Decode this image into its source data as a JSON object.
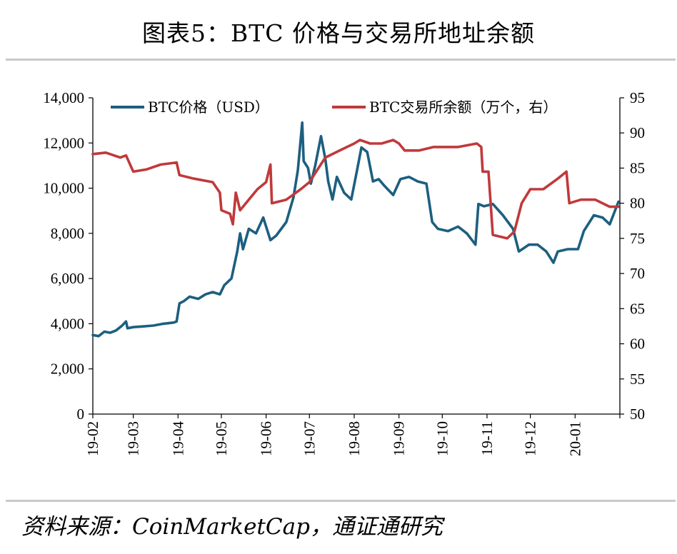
{
  "title": "图表5：BTC 价格与交易所地址余额",
  "source": "资料来源：CoinMarketCap，通证通研究",
  "colors": {
    "price": "#1d5f7f",
    "balance": "#c0393b",
    "axis": "#000000",
    "rule": "#c9c9c9"
  },
  "chart_data": {
    "type": "line",
    "title": "图表5：BTC 价格与交易所地址余额",
    "xlabel": "",
    "ylabel": "",
    "x_ticks": [
      "19-02",
      "19-03",
      "19-04",
      "19-05",
      "19-06",
      "19-07",
      "19-08",
      "19-09",
      "19-10",
      "19-11",
      "19-12",
      "20-01"
    ],
    "y_left": {
      "min": 0,
      "max": 14000,
      "ticks": [
        "0",
        "2,000",
        "4,000",
        "6,000",
        "8,000",
        "10,000",
        "12,000",
        "14,000"
      ]
    },
    "y_right": {
      "min": 50,
      "max": 95,
      "ticks": [
        "50",
        "55",
        "60",
        "65",
        "70",
        "75",
        "80",
        "85",
        "90",
        "95"
      ]
    },
    "legend_position": "top",
    "grid": false,
    "series": [
      {
        "name": "BTC价格（USD）",
        "axis": "left",
        "points": [
          [
            "2019-02-01",
            3500
          ],
          [
            "2019-02-05",
            3450
          ],
          [
            "2019-02-09",
            3650
          ],
          [
            "2019-02-13",
            3600
          ],
          [
            "2019-02-17",
            3700
          ],
          [
            "2019-02-21",
            3900
          ],
          [
            "2019-02-24",
            4100
          ],
          [
            "2019-02-25",
            3800
          ],
          [
            "2019-03-01",
            3850
          ],
          [
            "2019-03-08",
            3880
          ],
          [
            "2019-03-15",
            3920
          ],
          [
            "2019-03-22",
            4000
          ],
          [
            "2019-03-29",
            4050
          ],
          [
            "2019-03-31",
            4100
          ],
          [
            "2019-04-02",
            4900
          ],
          [
            "2019-04-05",
            5000
          ],
          [
            "2019-04-09",
            5200
          ],
          [
            "2019-04-15",
            5100
          ],
          [
            "2019-04-20",
            5300
          ],
          [
            "2019-04-25",
            5400
          ],
          [
            "2019-04-30",
            5300
          ],
          [
            "2019-05-03",
            5700
          ],
          [
            "2019-05-08",
            6000
          ],
          [
            "2019-05-12",
            7200
          ],
          [
            "2019-05-14",
            8000
          ],
          [
            "2019-05-16",
            7300
          ],
          [
            "2019-05-20",
            8200
          ],
          [
            "2019-05-25",
            8000
          ],
          [
            "2019-05-30",
            8700
          ],
          [
            "2019-06-04",
            7700
          ],
          [
            "2019-06-08",
            7900
          ],
          [
            "2019-06-15",
            8500
          ],
          [
            "2019-06-20",
            9600
          ],
          [
            "2019-06-23",
            10800
          ],
          [
            "2019-06-26",
            12900
          ],
          [
            "2019-06-27",
            11200
          ],
          [
            "2019-06-30",
            10900
          ],
          [
            "2019-07-02",
            10200
          ],
          [
            "2019-07-05",
            11000
          ],
          [
            "2019-07-09",
            12300
          ],
          [
            "2019-07-12",
            11300
          ],
          [
            "2019-07-14",
            10300
          ],
          [
            "2019-07-17",
            9500
          ],
          [
            "2019-07-20",
            10500
          ],
          [
            "2019-07-25",
            9800
          ],
          [
            "2019-07-30",
            9500
          ],
          [
            "2019-08-03",
            10800
          ],
          [
            "2019-08-06",
            11800
          ],
          [
            "2019-08-10",
            11600
          ],
          [
            "2019-08-14",
            10300
          ],
          [
            "2019-08-18",
            10400
          ],
          [
            "2019-08-22",
            10100
          ],
          [
            "2019-08-28",
            9700
          ],
          [
            "2019-09-02",
            10400
          ],
          [
            "2019-09-08",
            10500
          ],
          [
            "2019-09-14",
            10300
          ],
          [
            "2019-09-20",
            10200
          ],
          [
            "2019-09-24",
            8500
          ],
          [
            "2019-09-28",
            8200
          ],
          [
            "2019-10-05",
            8100
          ],
          [
            "2019-10-12",
            8300
          ],
          [
            "2019-10-18",
            8000
          ],
          [
            "2019-10-24",
            7500
          ],
          [
            "2019-10-26",
            9300
          ],
          [
            "2019-10-30",
            9200
          ],
          [
            "2019-11-05",
            9300
          ],
          [
            "2019-11-12",
            8800
          ],
          [
            "2019-11-19",
            8200
          ],
          [
            "2019-11-23",
            7200
          ],
          [
            "2019-11-30",
            7500
          ],
          [
            "2019-12-06",
            7500
          ],
          [
            "2019-12-12",
            7200
          ],
          [
            "2019-12-17",
            6700
          ],
          [
            "2019-12-20",
            7200
          ],
          [
            "2019-12-27",
            7300
          ],
          [
            "2020-01-03",
            7300
          ],
          [
            "2020-01-07",
            8100
          ],
          [
            "2020-01-14",
            8800
          ],
          [
            "2020-01-20",
            8700
          ],
          [
            "2020-01-25",
            8400
          ],
          [
            "2020-01-31",
            9400
          ]
        ]
      },
      {
        "name": "BTC交易所余额（万个，右）",
        "axis": "right",
        "points": [
          [
            "2019-02-01",
            87.0
          ],
          [
            "2019-02-10",
            87.2
          ],
          [
            "2019-02-20",
            86.5
          ],
          [
            "2019-02-24",
            86.8
          ],
          [
            "2019-03-01",
            84.5
          ],
          [
            "2019-03-10",
            84.8
          ],
          [
            "2019-03-20",
            85.5
          ],
          [
            "2019-03-31",
            85.8
          ],
          [
            "2019-04-02",
            84.0
          ],
          [
            "2019-04-12",
            83.5
          ],
          [
            "2019-04-25",
            83.0
          ],
          [
            "2019-04-30",
            81.5
          ],
          [
            "2019-05-01",
            79.0
          ],
          [
            "2019-05-07",
            78.5
          ],
          [
            "2019-05-09",
            77.0
          ],
          [
            "2019-05-11",
            81.5
          ],
          [
            "2019-05-14",
            79.0
          ],
          [
            "2019-05-20",
            80.5
          ],
          [
            "2019-05-26",
            82.0
          ],
          [
            "2019-06-01",
            83.0
          ],
          [
            "2019-06-04",
            85.5
          ],
          [
            "2019-06-05",
            80.0
          ],
          [
            "2019-06-15",
            80.5
          ],
          [
            "2019-06-25",
            82.0
          ],
          [
            "2019-07-01",
            83.0
          ],
          [
            "2019-07-12",
            86.5
          ],
          [
            "2019-07-22",
            87.5
          ],
          [
            "2019-08-01",
            88.5
          ],
          [
            "2019-08-05",
            89.0
          ],
          [
            "2019-08-12",
            88.5
          ],
          [
            "2019-08-20",
            88.5
          ],
          [
            "2019-08-28",
            89.0
          ],
          [
            "2019-09-01",
            88.5
          ],
          [
            "2019-09-05",
            87.5
          ],
          [
            "2019-09-15",
            87.5
          ],
          [
            "2019-09-25",
            88.0
          ],
          [
            "2019-10-01",
            88.0
          ],
          [
            "2019-10-12",
            88.0
          ],
          [
            "2019-10-25",
            88.5
          ],
          [
            "2019-10-28",
            88.0
          ],
          [
            "2019-10-29",
            84.5
          ],
          [
            "2019-11-02",
            84.5
          ],
          [
            "2019-11-05",
            75.5
          ],
          [
            "2019-11-15",
            75.0
          ],
          [
            "2019-11-20",
            76.0
          ],
          [
            "2019-11-25",
            80.0
          ],
          [
            "2019-12-01",
            82.0
          ],
          [
            "2019-12-10",
            82.0
          ],
          [
            "2019-12-20",
            83.5
          ],
          [
            "2019-12-26",
            84.5
          ],
          [
            "2019-12-28",
            80.0
          ],
          [
            "2020-01-05",
            80.5
          ],
          [
            "2020-01-15",
            80.5
          ],
          [
            "2020-01-25",
            79.5
          ],
          [
            "2020-01-31",
            79.5
          ]
        ]
      }
    ]
  }
}
